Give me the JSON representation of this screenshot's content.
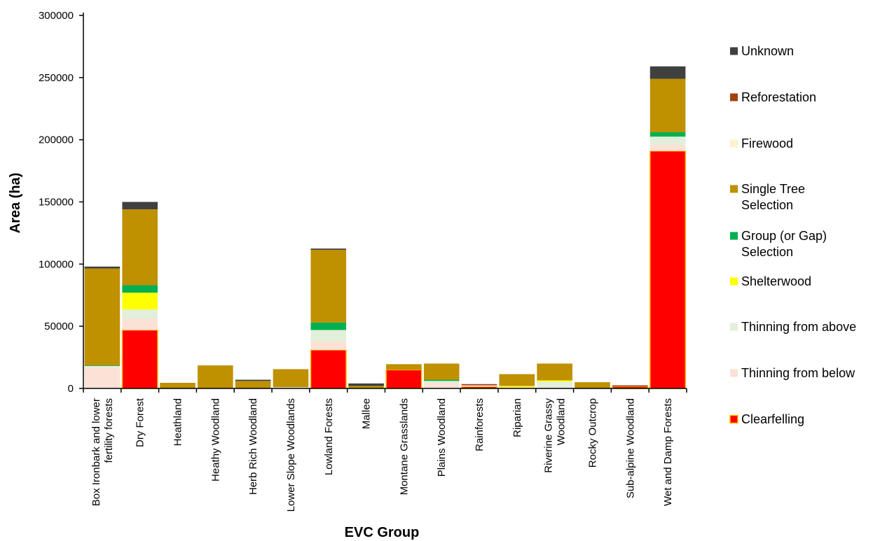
{
  "chart_data": {
    "type": "bar",
    "stacked": true,
    "title": "",
    "xlabel": "EVC Group",
    "ylabel": "Area (ha)",
    "ylim": [
      0,
      300000
    ],
    "yticks": [
      "0",
      "50000",
      "100000",
      "150000",
      "200000",
      "250000",
      "300000"
    ],
    "grid": false,
    "legend_position": "right",
    "categories": [
      [
        "Box Ironbark and lower",
        "fertility forests"
      ],
      [
        "Dry Forest"
      ],
      [
        "Heathland"
      ],
      [
        "Heathy Woodland"
      ],
      [
        "Herb Rich Woodland"
      ],
      [
        "Lower Slope Woodlands"
      ],
      [
        "Lowland Forests"
      ],
      [
        "Mallee"
      ],
      [
        "Montane Grasslands"
      ],
      [
        "Plains Woodland"
      ],
      [
        "Rainforests"
      ],
      [
        "Riparian"
      ],
      [
        "Riverine Grassy",
        "Woodland"
      ],
      [
        "Rocky Outcrop"
      ],
      [
        "Sub-alpine Woodland"
      ],
      [
        "Wet and Damp Forests"
      ]
    ],
    "series": [
      {
        "name": "Clearfelling",
        "color": "#ff0000",
        "edge": "#ffc000",
        "values": [
          0,
          47000,
          0,
          0,
          0,
          0,
          31000,
          0,
          15000,
          0,
          1500,
          0,
          0,
          0,
          1500,
          191000
        ]
      },
      {
        "name": "Thinning from below",
        "color": "#fbe1d6",
        "values": [
          17000,
          9000,
          0,
          0,
          0,
          500,
          7000,
          0,
          0,
          4500,
          1000,
          1000,
          1000,
          0,
          0,
          5000
        ]
      },
      {
        "name": "Thinning from above",
        "color": "#e2efda",
        "values": [
          1000,
          7500,
          0,
          0,
          0,
          500,
          9000,
          0,
          0,
          1500,
          0,
          0,
          4500,
          0,
          0,
          6500
        ]
      },
      {
        "name": "Shelterwood",
        "color": "#ffff00",
        "values": [
          0,
          13500,
          0,
          0,
          0,
          0,
          0,
          0,
          0,
          0,
          0,
          1000,
          1000,
          0,
          0,
          0
        ]
      },
      {
        "name": "Group (or Gap) Selection",
        "color": "#00b050",
        "values": [
          500,
          6000,
          0,
          0,
          0,
          0,
          6000,
          0,
          0,
          1000,
          0,
          0,
          0,
          0,
          0,
          3500
        ]
      },
      {
        "name": "Single Tree Selection",
        "color": "#bf9000",
        "values": [
          78000,
          61000,
          4500,
          18500,
          6000,
          14500,
          58500,
          2000,
          4500,
          13000,
          0,
          9500,
          13500,
          5000,
          0,
          43000
        ]
      },
      {
        "name": "Firewood",
        "color": "#fff2cc",
        "values": [
          0,
          0,
          0,
          0,
          0,
          0,
          0,
          0,
          0,
          0,
          0,
          0,
          0,
          0,
          0,
          0
        ]
      },
      {
        "name": "Reforestation",
        "color": "#a0410e",
        "values": [
          0,
          0,
          0,
          0,
          0,
          0,
          0,
          0,
          0,
          0,
          1000,
          0,
          0,
          0,
          1000,
          0
        ]
      },
      {
        "name": "Unknown",
        "color": "#404040",
        "values": [
          1500,
          6000,
          0,
          0,
          1000,
          0,
          1000,
          2000,
          0,
          0,
          0,
          0,
          0,
          0,
          0,
          10000
        ]
      }
    ],
    "legend": [
      {
        "series": "Unknown",
        "lines": [
          "Unknown"
        ]
      },
      {
        "series": "Reforestation",
        "lines": [
          "Reforestation"
        ]
      },
      {
        "series": "Firewood",
        "lines": [
          "Firewood"
        ]
      },
      {
        "series": "Single Tree Selection",
        "lines": [
          "Single Tree",
          "Selection"
        ]
      },
      {
        "series": "Group (or Gap) Selection",
        "lines": [
          "Group (or Gap)",
          "Selection"
        ]
      },
      {
        "series": "Shelterwood",
        "lines": [
          "Shelterwood"
        ]
      },
      {
        "series": "Thinning from above",
        "lines": [
          "Thinning from above"
        ]
      },
      {
        "series": "Thinning from below",
        "lines": [
          "Thinning from below"
        ]
      },
      {
        "series": "Clearfelling",
        "lines": [
          "Clearfelling"
        ]
      }
    ]
  }
}
